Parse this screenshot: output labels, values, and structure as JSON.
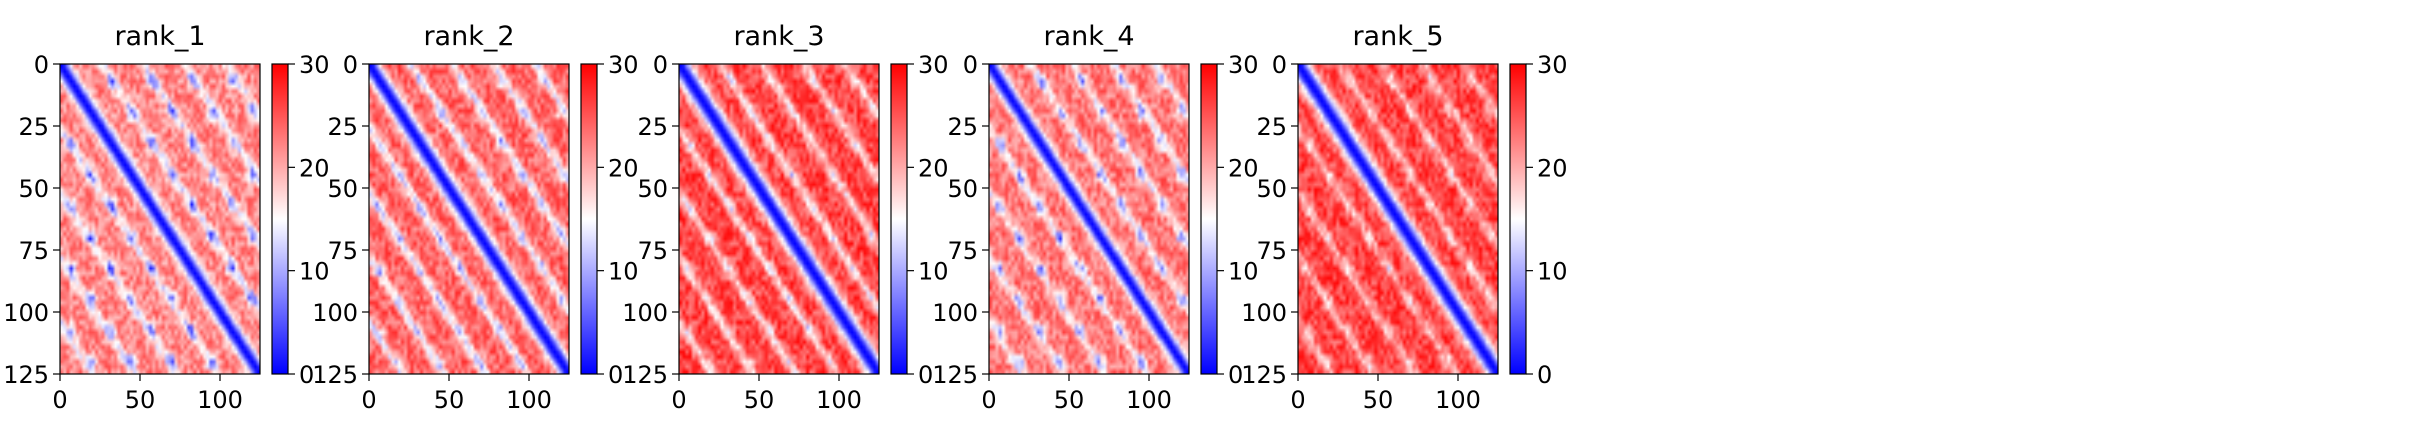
{
  "chart_data": [
    {
      "type": "heatmap",
      "title": "rank_1",
      "x_ticks": [
        0,
        50,
        100
      ],
      "y_ticks": [
        0,
        25,
        50,
        75,
        100,
        125
      ],
      "xlim": [
        0,
        125
      ],
      "ylim": [
        125,
        0
      ],
      "colorbar": {
        "ticks": [
          0,
          10,
          20,
          30
        ],
        "range": [
          0,
          30
        ],
        "colormap": "bwr"
      },
      "grid": false,
      "pattern": {
        "diagonal_width": 4,
        "band_spacing": 26,
        "band_strength": 0.55,
        "cluster_strength": 0.75,
        "bg": 22
      }
    },
    {
      "type": "heatmap",
      "title": "rank_2",
      "x_ticks": [
        0,
        50,
        100
      ],
      "y_ticks": [
        0,
        25,
        50,
        75,
        100,
        125
      ],
      "xlim": [
        0,
        125
      ],
      "ylim": [
        125,
        0
      ],
      "colorbar": {
        "ticks": [
          0,
          10,
          20,
          30
        ],
        "range": [
          0,
          30
        ],
        "colormap": "bwr"
      },
      "grid": false,
      "pattern": {
        "diagonal_width": 4.5,
        "band_spacing": 26,
        "band_strength": 0.7,
        "cluster_strength": 0.45,
        "bg": 24
      }
    },
    {
      "type": "heatmap",
      "title": "rank_3",
      "x_ticks": [
        0,
        50,
        100
      ],
      "y_ticks": [
        0,
        25,
        50,
        75,
        100,
        125
      ],
      "xlim": [
        0,
        125
      ],
      "ylim": [
        125,
        0
      ],
      "colorbar": {
        "ticks": [
          0,
          10,
          20,
          30
        ],
        "range": [
          0,
          30
        ],
        "colormap": "bwr"
      },
      "grid": false,
      "pattern": {
        "diagonal_width": 5,
        "band_spacing": 26,
        "band_strength": 0.65,
        "cluster_strength": 0.3,
        "bg": 26
      }
    },
    {
      "type": "heatmap",
      "title": "rank_4",
      "x_ticks": [
        0,
        50,
        100
      ],
      "y_ticks": [
        0,
        25,
        50,
        75,
        100,
        125
      ],
      "xlim": [
        0,
        125
      ],
      "ylim": [
        125,
        0
      ],
      "colorbar": {
        "ticks": [
          0,
          10,
          20
        ],
        "range": [
          0,
          30
        ],
        "colormap": "bwr",
        "top_label": "30"
      },
      "grid": false,
      "pattern": {
        "diagonal_width": 4,
        "band_spacing": 26,
        "band_strength": 0.55,
        "cluster_strength": 0.7,
        "bg": 23
      }
    },
    {
      "type": "heatmap",
      "title": "rank_5",
      "x_ticks": [
        0,
        50,
        100
      ],
      "y_ticks": [
        0,
        25,
        50,
        75,
        100,
        125
      ],
      "xlim": [
        0,
        125
      ],
      "ylim": [
        125,
        0
      ],
      "colorbar": {
        "ticks": [
          0,
          10,
          20,
          30
        ],
        "range": [
          0,
          30
        ],
        "colormap": "bwr"
      },
      "grid": false,
      "pattern": {
        "diagonal_width": 5,
        "band_spacing": 26,
        "band_strength": 0.45,
        "cluster_strength": 0.35,
        "bg": 26
      }
    }
  ]
}
